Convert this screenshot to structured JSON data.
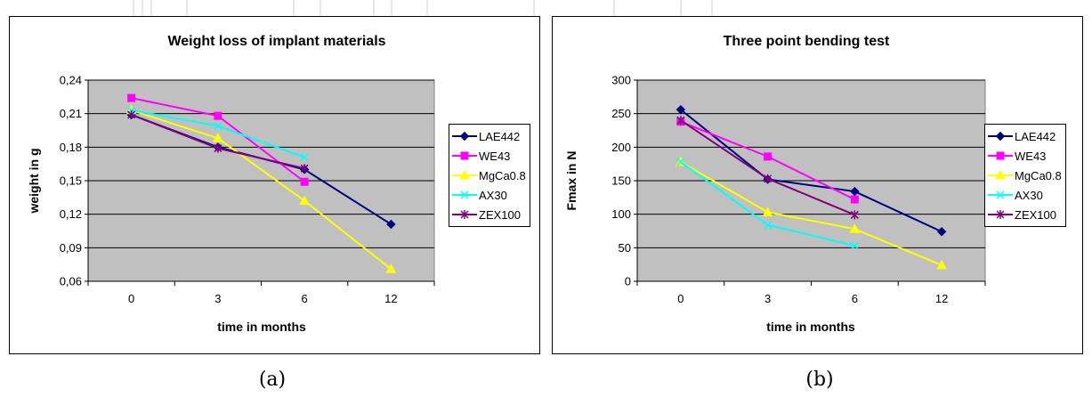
{
  "captions": [
    "(a)",
    "(b)"
  ],
  "chart_data": [
    {
      "type": "line",
      "title": "Weight loss of implant materials",
      "xlabel": "time in months",
      "ylabel": "weight in g",
      "categories": [
        "0",
        "3",
        "6",
        "12"
      ],
      "ylim": [
        0.06,
        0.24
      ],
      "yticks": [
        0.06,
        0.09,
        0.12,
        0.15,
        0.18,
        0.21,
        0.24
      ],
      "ytick_labels": [
        "0,06",
        "0,09",
        "0,12",
        "0,15",
        "0,18",
        "0,21",
        "0,24"
      ],
      "grid": true,
      "legend": "right",
      "series": [
        {
          "name": "LAE442",
          "values": [
            0.209,
            0.18,
            0.16,
            0.111
          ],
          "color": "#000080",
          "marker": "diamond"
        },
        {
          "name": "WE43",
          "values": [
            0.224,
            0.208,
            0.149,
            null
          ],
          "color": "#FF00FF",
          "marker": "square"
        },
        {
          "name": "MgCa0.8",
          "values": [
            0.213,
            0.188,
            0.132,
            0.071
          ],
          "color": "#FFFF00",
          "marker": "triangle"
        },
        {
          "name": "AX30",
          "values": [
            0.213,
            0.199,
            0.171,
            null
          ],
          "color": "#00FFFF",
          "marker": "x"
        },
        {
          "name": "ZEX100",
          "values": [
            0.209,
            0.179,
            0.161,
            null
          ],
          "color": "#800080",
          "marker": "star"
        }
      ]
    },
    {
      "type": "line",
      "title": "Three point bending test",
      "xlabel": "time in months",
      "ylabel": "Fmax in N",
      "categories": [
        "0",
        "3",
        "6",
        "12"
      ],
      "ylim": [
        0,
        300
      ],
      "yticks": [
        0,
        50,
        100,
        150,
        200,
        250,
        300
      ],
      "ytick_labels": [
        "0",
        "50",
        "100",
        "150",
        "200",
        "250",
        "300"
      ],
      "grid": true,
      "legend": "right",
      "series": [
        {
          "name": "LAE442",
          "values": [
            256,
            152,
            134,
            74
          ],
          "color": "#000080",
          "marker": "diamond"
        },
        {
          "name": "WE43",
          "values": [
            238,
            186,
            122,
            null
          ],
          "color": "#FF00FF",
          "marker": "square"
        },
        {
          "name": "MgCa0.8",
          "values": [
            178,
            103,
            78,
            24
          ],
          "color": "#FFFF00",
          "marker": "triangle"
        },
        {
          "name": "AX30",
          "values": [
            178,
            84,
            53,
            null
          ],
          "color": "#00FFFF",
          "marker": "x"
        },
        {
          "name": "ZEX100",
          "values": [
            240,
            153,
            99,
            null
          ],
          "color": "#800080",
          "marker": "star"
        }
      ]
    }
  ]
}
